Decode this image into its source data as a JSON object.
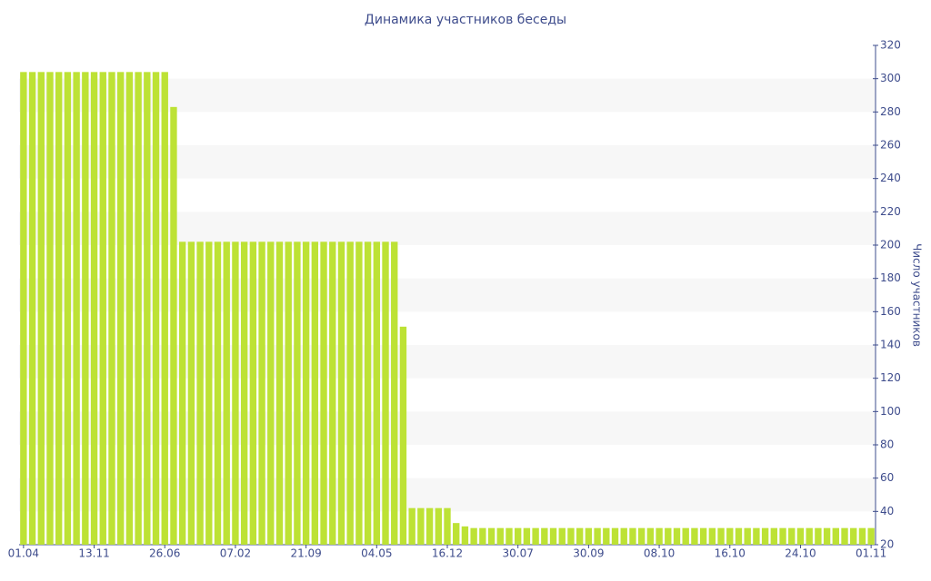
{
  "chart_data": {
    "type": "bar",
    "title": "Динамика участников беседы",
    "y_label": "Число участников",
    "categories": [
      "01.04",
      null,
      null,
      null,
      null,
      null,
      null,
      null,
      "13.11",
      null,
      null,
      null,
      null,
      null,
      null,
      null,
      "26.06",
      null,
      null,
      null,
      null,
      null,
      null,
      null,
      "07.02",
      null,
      null,
      null,
      null,
      null,
      null,
      null,
      "21.09",
      null,
      null,
      null,
      null,
      null,
      null,
      null,
      "04.05",
      null,
      null,
      null,
      null,
      null,
      null,
      null,
      "16.12",
      null,
      null,
      null,
      null,
      null,
      null,
      null,
      "30.07",
      null,
      null,
      null,
      null,
      null,
      null,
      null,
      "30.09",
      null,
      null,
      null,
      null,
      null,
      null,
      null,
      "08.10",
      null,
      null,
      null,
      null,
      null,
      null,
      null,
      "16.10",
      null,
      null,
      null,
      null,
      null,
      null,
      null,
      "24.10",
      null,
      null,
      null,
      null,
      null,
      null,
      null,
      "01.11"
    ],
    "values": [
      304,
      304,
      304,
      304,
      304,
      304,
      304,
      304,
      304,
      304,
      304,
      304,
      304,
      304,
      304,
      304,
      304,
      283,
      202,
      202,
      202,
      202,
      202,
      202,
      202,
      202,
      202,
      202,
      202,
      202,
      202,
      202,
      202,
      202,
      202,
      202,
      202,
      202,
      202,
      202,
      202,
      202,
      202,
      151,
      42,
      42,
      42,
      42,
      42,
      33,
      31,
      30,
      30,
      30,
      30,
      30,
      30,
      30,
      30,
      30,
      30,
      30,
      30,
      30,
      30,
      30,
      30,
      30,
      30,
      30,
      30,
      30,
      30,
      30,
      30,
      30,
      30,
      30,
      30,
      30,
      30,
      30,
      30,
      30,
      30,
      30,
      30,
      30,
      30,
      30,
      30,
      30,
      30,
      30,
      30,
      30,
      30
    ],
    "color": "#bde235",
    "ylim": [
      20,
      320
    ],
    "yticks": [
      20,
      40,
      60,
      80,
      100,
      120,
      140,
      160,
      180,
      200,
      220,
      240,
      260,
      280,
      300,
      320
    ],
    "y_axis_side": "right",
    "grid": "bands"
  }
}
